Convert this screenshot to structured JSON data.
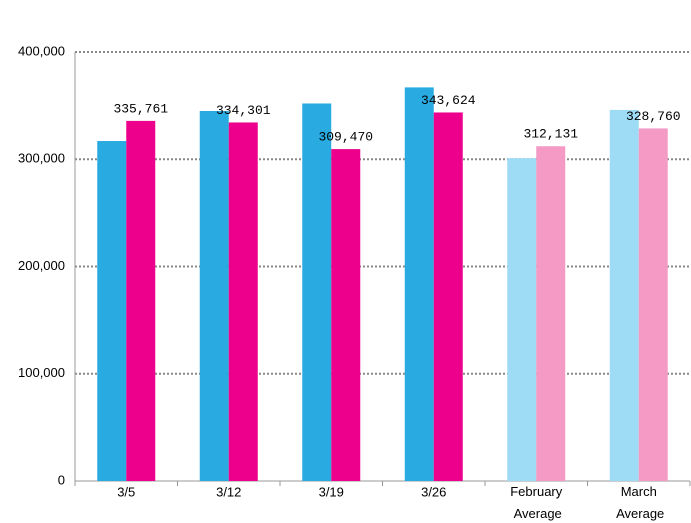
{
  "chart_data": {
    "type": "bar",
    "categories": [
      "3/5",
      "3/12",
      "3/19",
      "3/26",
      "February Average",
      "March Average"
    ],
    "series": [
      {
        "colors": [
          "#29abe2",
          "#29abe2",
          "#29abe2",
          "#29abe2",
          "#9ddcf4",
          "#9ddcf4"
        ],
        "values": [
          317000,
          345000,
          352000,
          367000,
          301000,
          346000
        ]
      },
      {
        "colors": [
          "#ec008c",
          "#ec008c",
          "#ec008c",
          "#ec008c",
          "#f49ac4",
          "#f49ac4"
        ],
        "values": [
          335761,
          334301,
          309470,
          343624,
          312131,
          328760
        ],
        "value_labels": [
          "335,761",
          "334,301",
          "309,470",
          "343,624",
          "312,131",
          "328,760"
        ]
      }
    ],
    "ylim": [
      0,
      400000
    ],
    "yticks": [
      {
        "value": 0,
        "label": "0"
      },
      {
        "value": 100000,
        "label": "100,000"
      },
      {
        "value": 200000,
        "label": "200,000"
      },
      {
        "value": 300000,
        "label": "300,000"
      },
      {
        "value": 400000,
        "label": "400,000"
      }
    ],
    "grid": true
  }
}
